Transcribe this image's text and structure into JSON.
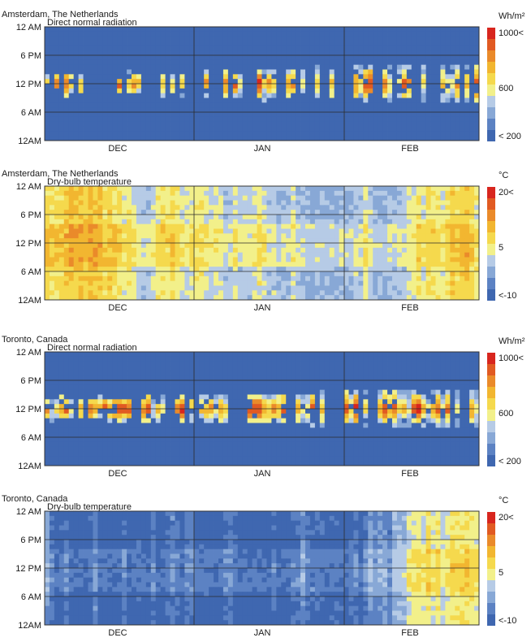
{
  "colors": {
    "scale": [
      "#3F67B0",
      "#5C82C3",
      "#88A8D6",
      "#B6CBE6",
      "#F2F08A",
      "#F5D94D",
      "#F2B630",
      "#EA8A2A",
      "#E15A22",
      "#D8261E"
    ]
  },
  "chart_data": [
    {
      "type": "heatmap",
      "location": "Amsterdam, The Netherlands",
      "title": "Direct normal radiation",
      "unit": "Wh/m²",
      "y_ticks": [
        "12 AM",
        "6 PM",
        "12 PM",
        "6 AM",
        "12AM"
      ],
      "x_months": [
        "DEC",
        "JAN",
        "FEB"
      ],
      "colorbar_labels": [
        "1000<",
        "600",
        "< 200"
      ],
      "variable": "radiation",
      "seed": 11,
      "activity": 0.35,
      "peak_month": "FEB",
      "range": [
        200,
        1000
      ]
    },
    {
      "type": "heatmap",
      "location": "Amsterdam, The Netherlands",
      "title": "Dry-bulb temperature",
      "unit": "°C",
      "y_ticks": [
        "12 AM",
        "6 PM",
        "12 PM",
        "6 AM",
        "12AM"
      ],
      "x_months": [
        "DEC",
        "JAN",
        "FEB"
      ],
      "colorbar_labels": [
        "20<",
        "5",
        "<-10"
      ],
      "variable": "temperature",
      "seed": 23,
      "climate": "mild",
      "range": [
        -10,
        20
      ]
    },
    {
      "type": "heatmap",
      "location": "Toronto, Canada",
      "title": "Direct normal radiation",
      "unit": "Wh/m²",
      "y_ticks": [
        "12 AM",
        "6 PM",
        "12 PM",
        "6 AM",
        "12AM"
      ],
      "x_months": [
        "DEC",
        "JAN",
        "FEB"
      ],
      "colorbar_labels": [
        "1000<",
        "600",
        "< 200"
      ],
      "variable": "radiation",
      "seed": 37,
      "activity": 0.6,
      "peak_month": "FEB",
      "range": [
        200,
        1000
      ]
    },
    {
      "type": "heatmap",
      "location": "Toronto, Canada",
      "title": "Dry-bulb temperature",
      "unit": "°C",
      "y_ticks": [
        "12 AM",
        "6 PM",
        "12 PM",
        "6 AM",
        "12AM"
      ],
      "x_months": [
        "DEC",
        "JAN",
        "FEB"
      ],
      "colorbar_labels": [
        "20<",
        "5",
        "<-10"
      ],
      "variable": "temperature",
      "seed": 53,
      "climate": "cold",
      "range": [
        -10,
        20
      ]
    }
  ]
}
